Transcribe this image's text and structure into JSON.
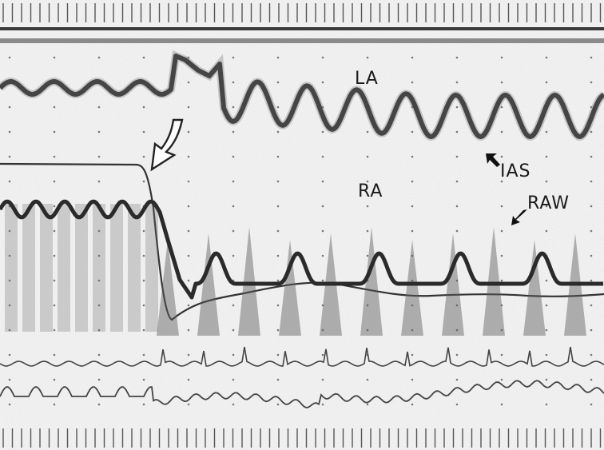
{
  "figure": {
    "labels": {
      "la": "LA",
      "ra": "RA",
      "ias": "IAS",
      "raw": "RAW"
    },
    "icons": {
      "transition_marker": "curved-hollow-arrow-icon",
      "ias_pointer": "small-arrow-icon",
      "raw_pointer": "small-arrow-icon"
    },
    "colors": {
      "paper": "#ffffff",
      "trace": "#2a2a2a",
      "speckle": "#6a6a6a",
      "tick_marks": "#555555"
    }
  }
}
